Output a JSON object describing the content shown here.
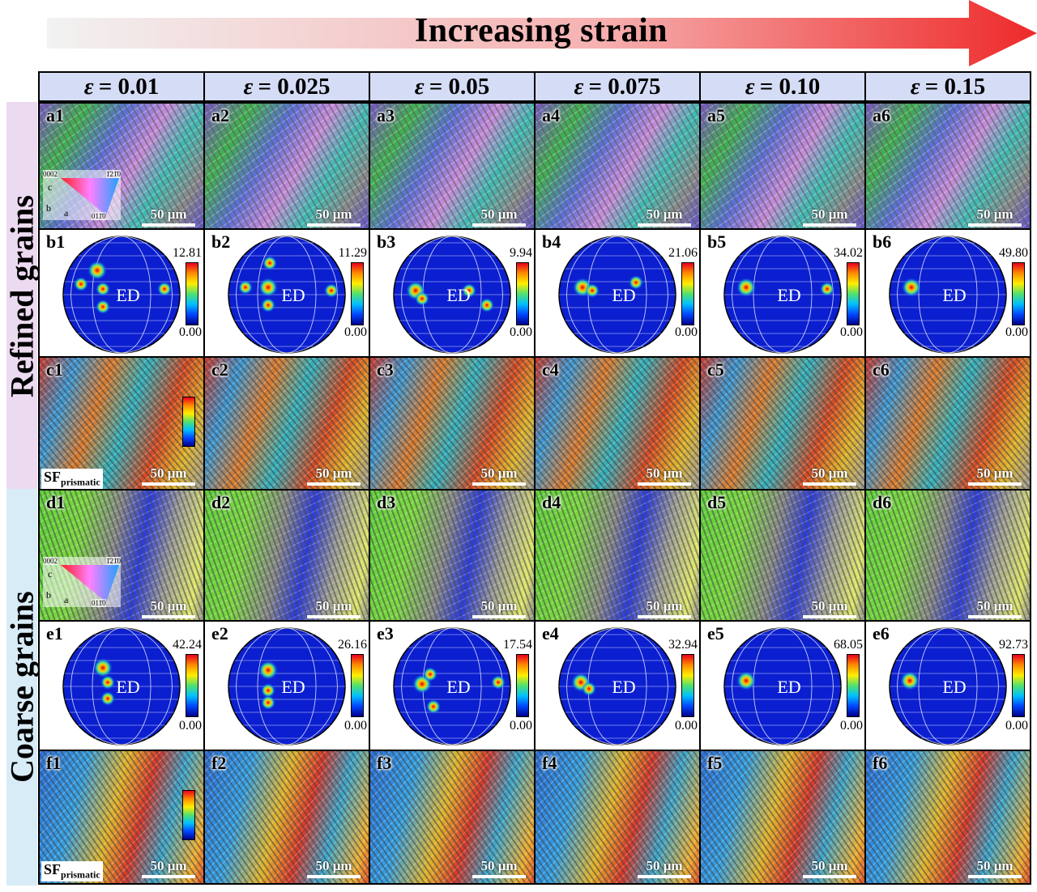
{
  "arrow": {
    "title": "Increasing strain"
  },
  "columns": [
    "= 0.01",
    "= 0.025",
    "= 0.05",
    "= 0.075",
    "= 0.10",
    "= 0.15"
  ],
  "epsilon": "ε",
  "row_groups": [
    "Refined grains",
    "Coarse grains"
  ],
  "rows": {
    "a": [
      "a1",
      "a2",
      "a3",
      "a4",
      "a5",
      "a6"
    ],
    "b": [
      "b1",
      "b2",
      "b3",
      "b4",
      "b5",
      "b6"
    ],
    "c": [
      "c1",
      "c2",
      "c3",
      "c4",
      "c5",
      "c6"
    ],
    "d": [
      "d1",
      "d2",
      "d3",
      "d4",
      "d5",
      "d6"
    ],
    "e": [
      "e1",
      "e2",
      "e3",
      "e4",
      "e5",
      "e6"
    ],
    "f": [
      "f1",
      "f2",
      "f3",
      "f4",
      "f5",
      "f6"
    ]
  },
  "scale_bar": "50 μm",
  "pf_center": "ED",
  "b_max": [
    "12.81",
    "11.29",
    "9.94",
    "21.06",
    "34.02",
    "49.80"
  ],
  "e_max": [
    "42.24",
    "26.16",
    "17.54",
    "32.94",
    "68.05",
    "92.73"
  ],
  "pf_min": "0.00",
  "sf_label_main": "SF",
  "sf_label_sub": "prismatic",
  "ipf_legend": {
    "top_left": "0002",
    "top_right": "1̄21̄0",
    "bottom": "011̄0",
    "c": "c",
    "b": "b",
    "a": "a"
  }
}
